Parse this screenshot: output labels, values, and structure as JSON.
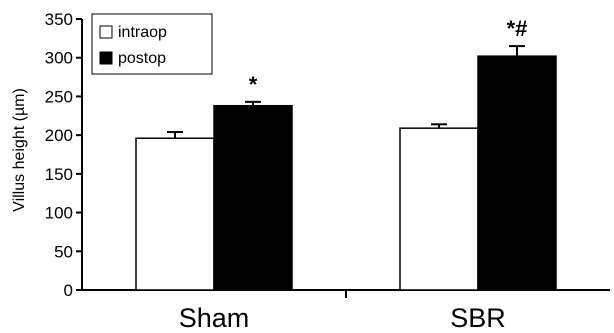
{
  "chart_data": {
    "type": "bar",
    "categories": [
      "Sham",
      "SBR"
    ],
    "series": [
      {
        "name": "intraop",
        "values": [
          196,
          209
        ],
        "errors": [
          8,
          5
        ],
        "color": "#ffffff"
      },
      {
        "name": "postop",
        "values": [
          238,
          302
        ],
        "errors": [
          5,
          13
        ],
        "color": "#000000"
      }
    ],
    "annotations": [
      {
        "category": "Sham",
        "series": "postop",
        "text": "*"
      },
      {
        "category": "SBR",
        "series": "postop",
        "text": "*#"
      }
    ],
    "title": "",
    "xlabel": "",
    "ylabel": "Villus height (µm)",
    "ylim": [
      0,
      350
    ],
    "yticks": [
      0,
      50,
      100,
      150,
      200,
      250,
      300,
      350
    ],
    "grid": false,
    "legend_position": "top-left"
  }
}
